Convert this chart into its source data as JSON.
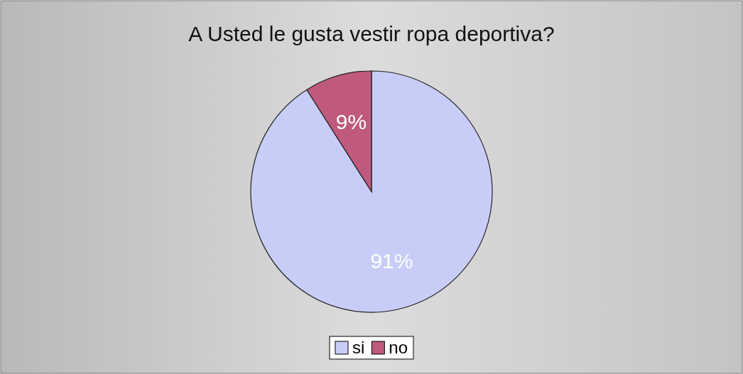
{
  "chart_data": {
    "type": "pie",
    "title": "A Usted le gusta vestir ropa deportiva?",
    "categories": [
      "si",
      "no"
    ],
    "values": [
      91,
      9
    ],
    "colors": [
      "#c8cdf7",
      "#bf5a7e"
    ],
    "value_labels": [
      "91%",
      "9%"
    ],
    "legend": "bottom"
  }
}
